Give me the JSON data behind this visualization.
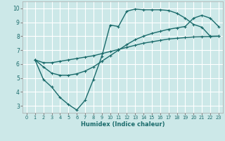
{
  "xlabel": "Humidex (Indice chaleur)",
  "bg_color": "#cce8e8",
  "grid_color": "#ffffff",
  "line_color": "#1a6b6b",
  "xlim": [
    -0.5,
    23.5
  ],
  "ylim": [
    2.5,
    10.5
  ],
  "xticks": [
    0,
    1,
    2,
    3,
    4,
    5,
    6,
    7,
    8,
    9,
    10,
    11,
    12,
    13,
    14,
    15,
    16,
    17,
    18,
    19,
    20,
    21,
    22,
    23
  ],
  "yticks": [
    3,
    4,
    5,
    6,
    7,
    8,
    9,
    10
  ],
  "line1_x": [
    1,
    2,
    3,
    4,
    5,
    6,
    7,
    8,
    9,
    10,
    11,
    12,
    13,
    14,
    15,
    16,
    17,
    18,
    19,
    20,
    21,
    22,
    23
  ],
  "line1_y": [
    6.3,
    6.1,
    6.1,
    6.2,
    6.3,
    6.4,
    6.5,
    6.6,
    6.75,
    6.9,
    7.05,
    7.2,
    7.35,
    7.5,
    7.6,
    7.7,
    7.8,
    7.85,
    7.9,
    7.95,
    7.97,
    7.98,
    8.0
  ],
  "line2_x": [
    1,
    2,
    3,
    4,
    5,
    6,
    7,
    8,
    9,
    10,
    11,
    12,
    13,
    14,
    15,
    16,
    17,
    18,
    19,
    20,
    21,
    22,
    23
  ],
  "line2_y": [
    6.3,
    5.8,
    5.35,
    5.2,
    5.2,
    5.3,
    5.5,
    5.8,
    6.2,
    6.6,
    7.0,
    7.4,
    7.75,
    8.0,
    8.2,
    8.35,
    8.5,
    8.6,
    8.7,
    9.3,
    9.5,
    9.3,
    8.7
  ],
  "line3_x": [
    1,
    2,
    3,
    4,
    5,
    6,
    7,
    8,
    9,
    10,
    11,
    12,
    13,
    14,
    15,
    16,
    17,
    18,
    19,
    20,
    21,
    22,
    23
  ],
  "line3_y": [
    6.3,
    4.9,
    4.35,
    3.6,
    3.1,
    2.7,
    3.4,
    4.9,
    6.55,
    8.8,
    8.7,
    9.8,
    9.95,
    9.9,
    9.9,
    9.9,
    9.85,
    9.65,
    9.3,
    8.85,
    8.65,
    8.0,
    8.0
  ],
  "marker": "+",
  "marker_size": 3,
  "linewidth": 1.0
}
